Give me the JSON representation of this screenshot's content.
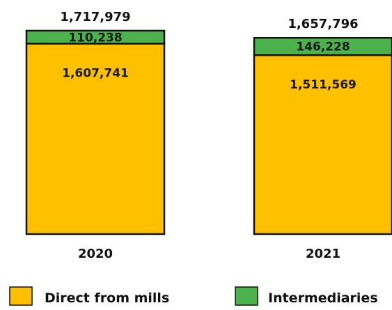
{
  "chart_data": {
    "type": "bar",
    "stacked": true,
    "categories": [
      "2020",
      "2021"
    ],
    "series": [
      {
        "name": "Direct from mills",
        "values": [
          1607741,
          1511569
        ],
        "labels": [
          "1,607,741",
          "1,511,569"
        ],
        "color": "#FFC000"
      },
      {
        "name": "Intermediaries",
        "values": [
          110238,
          146228
        ],
        "labels": [
          "110,238",
          "146,228"
        ],
        "color": "#4CB34C"
      }
    ],
    "totals": [
      1717979,
      1657796
    ],
    "total_labels": [
      "1,717,979",
      "1,657,796"
    ],
    "title": "",
    "xlabel": "",
    "ylabel": "",
    "ylim": [
      0,
      1717979
    ],
    "grid": false,
    "legend_position": "bottom"
  }
}
